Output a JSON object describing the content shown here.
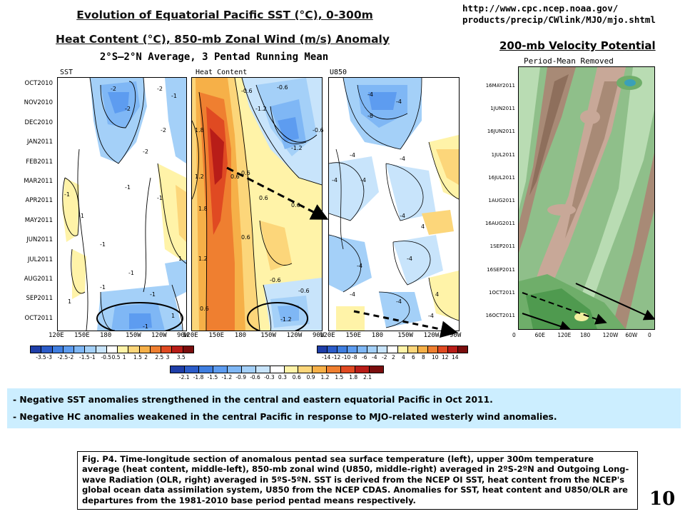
{
  "header": {
    "title_line1": "Evolution of Equatorial Pacific SST (°C), 0-300m",
    "title_line2": "Heat Content (°C), 850-mb Zonal Wind (m/s) Anomaly",
    "url_line1": "http://www.cpc.ncep.noaa.gov/",
    "url_line2": "products/precip/CWlink/MJO/mjo.shtml",
    "vp_title": "200-mb Velocity Potential"
  },
  "hovmoller": {
    "subtitle": "2°S–2°N Average, 3 Pentad Running Mean",
    "panels": [
      "SST",
      "Heat Content",
      "U850"
    ],
    "months": [
      "OCT2010",
      "NOV2010",
      "DEC2010",
      "JAN2011",
      "FEB2011",
      "MAR2011",
      "APR2011",
      "MAY2011",
      "JUN2011",
      "JUL2011",
      "AUG2011",
      "SEP2011",
      "OCT2011"
    ],
    "longitudes": [
      "120E",
      "150E",
      "180",
      "150W",
      "120W",
      "90W"
    ],
    "contour_labels_sst": [
      "-2",
      "-2",
      "-1",
      "-2",
      "-2",
      "-2",
      "-1",
      "-1",
      "-1",
      "-1",
      "-1",
      "1",
      "-1",
      "-1",
      "-1",
      "1",
      "-1",
      "1"
    ],
    "contour_labels_hc": [
      "-0.6",
      "-1.2",
      "-0.6",
      "-0.6",
      "0.6",
      "1.8",
      "1.2",
      "-1.2",
      "1.8",
      "0.6",
      "0.6",
      "1.2",
      "0.6",
      "0.6",
      "-0.6",
      "0.6",
      "-1.2",
      "-0.6"
    ],
    "contour_labels_u850": [
      "-4",
      "-8",
      "-4",
      "-4",
      "-4",
      "-4",
      "-4",
      "-4",
      "4",
      "-4",
      "-4",
      "-4",
      "4",
      "-4",
      "-4"
    ]
  },
  "colorbars": {
    "sst": {
      "labels": [
        "-3.5",
        "-3",
        "-2.5",
        "-2",
        "-1.5",
        "-1",
        "-0.5",
        "0.5",
        "1",
        "1.5",
        "2",
        "2.5",
        "3",
        "3.5"
      ],
      "colors": [
        "#1f3ea8",
        "#2c5cc9",
        "#3f7ee0",
        "#5d9cf0",
        "#7fb7f5",
        "#a4d0f8",
        "#c8e4fb",
        "#ffffff",
        "#fff3a8",
        "#fcd67a",
        "#f6b048",
        "#ef7f30",
        "#e04a22",
        "#b81d18",
        "#7a0d0d"
      ]
    },
    "hc": {
      "labels": [
        "-2.1",
        "-1.8",
        "-1.5",
        "-1.2",
        "-0.9",
        "-0.6",
        "-0.3",
        "0.3",
        "0.6",
        "0.9",
        "1.2",
        "1.5",
        "1.8",
        "2.1"
      ],
      "colors": [
        "#1f3ea8",
        "#2c5cc9",
        "#3f7ee0",
        "#5d9cf0",
        "#7fb7f5",
        "#a4d0f8",
        "#c8e4fb",
        "#ffffff",
        "#fff3a8",
        "#fcd67a",
        "#f6b048",
        "#ef7f30",
        "#e04a22",
        "#b81d18",
        "#7a0d0d"
      ]
    },
    "u850": {
      "labels": [
        "-14",
        "-12",
        "-10",
        "-8",
        "-6",
        "-4",
        "-2",
        "2",
        "4",
        "6",
        "8",
        "10",
        "12",
        "14"
      ],
      "colors": [
        "#1f3ea8",
        "#2c5cc9",
        "#3f7ee0",
        "#5d9cf0",
        "#7fb7f5",
        "#a4d0f8",
        "#c8e4fb",
        "#ffffff",
        "#fff3a8",
        "#fcd67a",
        "#f6b048",
        "#ef7f30",
        "#e04a22",
        "#b81d18",
        "#7a0d0d"
      ]
    }
  },
  "vp": {
    "subtitle": "Period-Mean Removed",
    "dates": [
      "16MAY2011",
      "1JUN2011",
      "16JUN2011",
      "1JUL2011",
      "16JUL2011",
      "1AUG2011",
      "16AUG2011",
      "1SEP2011",
      "16SEP2011",
      "1OCT2011",
      "16OCT2011"
    ],
    "longitudes": [
      "0",
      "60E",
      "120E",
      "180",
      "120W",
      "60W",
      "0"
    ]
  },
  "notes": {
    "bullet1": "- Negative SST anomalies strengthened in the central and eastern equatorial Pacific in Oct  2011.",
    "bullet2": "- Negative HC anomalies weakened in the central Pacific in response to MJO-related westerly wind anomalies."
  },
  "caption": "Fig. P4. Time-longitude section of anomalous pentad sea surface temperature (left), upper 300m temperature average (heat content, middle-left), 850-mb zonal wind (U850, middle-right) averaged in 2ºS-2ºN and Outgoing Long-wave Radiation (OLR, right) averaged in 5ºS-5ºN. SST is derived from the NCEP OI SST, heat content from the NCEP's global ocean data assimilation system, U850 from the NCEP CDAS. Anomalies for SST, heat content and U850/OLR are departures from the 1981-2010 base period pentad means respectively.",
  "page_number": "10"
}
